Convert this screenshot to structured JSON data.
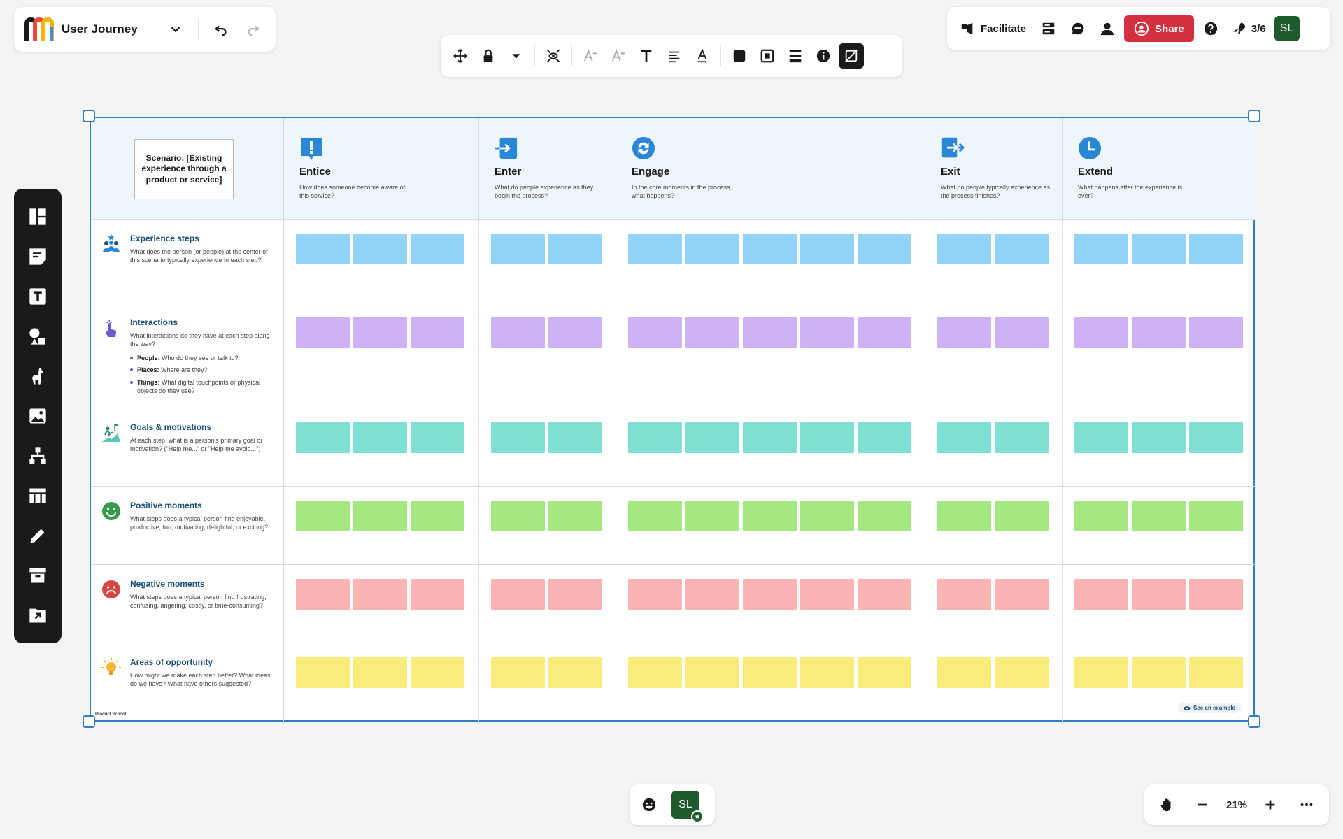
{
  "header": {
    "board_title": "User Journey",
    "facilitate_label": "Facilitate",
    "share_label": "Share",
    "slide_counter": "3/6",
    "user_initials": "SL"
  },
  "board": {
    "scenario": "Scenario: [Existing experience through a product or service]",
    "stages": [
      {
        "name": "Entice",
        "desc": "How does someone become aware of this service?",
        "icon": "exclamation-icon",
        "notes": 3
      },
      {
        "name": "Enter",
        "desc": "What do people experience as they begin the process?",
        "icon": "enter-arrow-icon",
        "notes": 2
      },
      {
        "name": "Engage",
        "desc": "In the core moments in the process, what happens?",
        "icon": "refresh-icon",
        "notes": 5
      },
      {
        "name": "Exit",
        "desc": "What do people typically experience as the process finishes?",
        "icon": "exit-arrow-icon",
        "notes": 2
      },
      {
        "name": "Extend",
        "desc": "What happens after the experience is over?",
        "icon": "clock-icon",
        "notes": 3
      }
    ],
    "rows": [
      {
        "title": "Experience steps",
        "desc": "What does the person (or people) at the center of this scenario typically experience in each step?",
        "icon": "people-icon",
        "color": "#93d3f8"
      },
      {
        "title": "Interactions",
        "desc": "What interactions do they have at each step along the way?",
        "icon": "pointer-hand-icon",
        "color": "#cdb3f6",
        "bullets": [
          {
            "bold": "People:",
            "text": " Who do they see or talk to?"
          },
          {
            "bold": "Places:",
            "text": " Where are they?"
          },
          {
            "bold": "Things:",
            "text": " What digital touchpoints or physical objects do they use?"
          }
        ]
      },
      {
        "title": "Goals & motivations",
        "desc": "At each step, what is a person's primary goal or motivation? (\"Help me...\" or \"Help me avoid...\")",
        "icon": "goal-climber-icon",
        "color": "#7ee0d2"
      },
      {
        "title": "Positive moments",
        "desc": "What steps does a typical person find enjoyable, productive, fun, motivating, delightful, or exciting?",
        "icon": "happy-face-icon",
        "color": "#a4e87f"
      },
      {
        "title": "Negative moments",
        "desc": "What steps does a typical person find frustrating, confusing, angering, costly, or time-consuming?",
        "icon": "sad-face-icon",
        "color": "#fdb3b3"
      },
      {
        "title": "Areas of opportunity",
        "desc": "How might we make each step better? What ideas do we have? What have others suggested?",
        "icon": "lightbulb-icon",
        "color": "#f9ec7a"
      }
    ],
    "footer_logo": "Product School",
    "see_example": "See an example"
  },
  "zoom_level": "21%"
}
